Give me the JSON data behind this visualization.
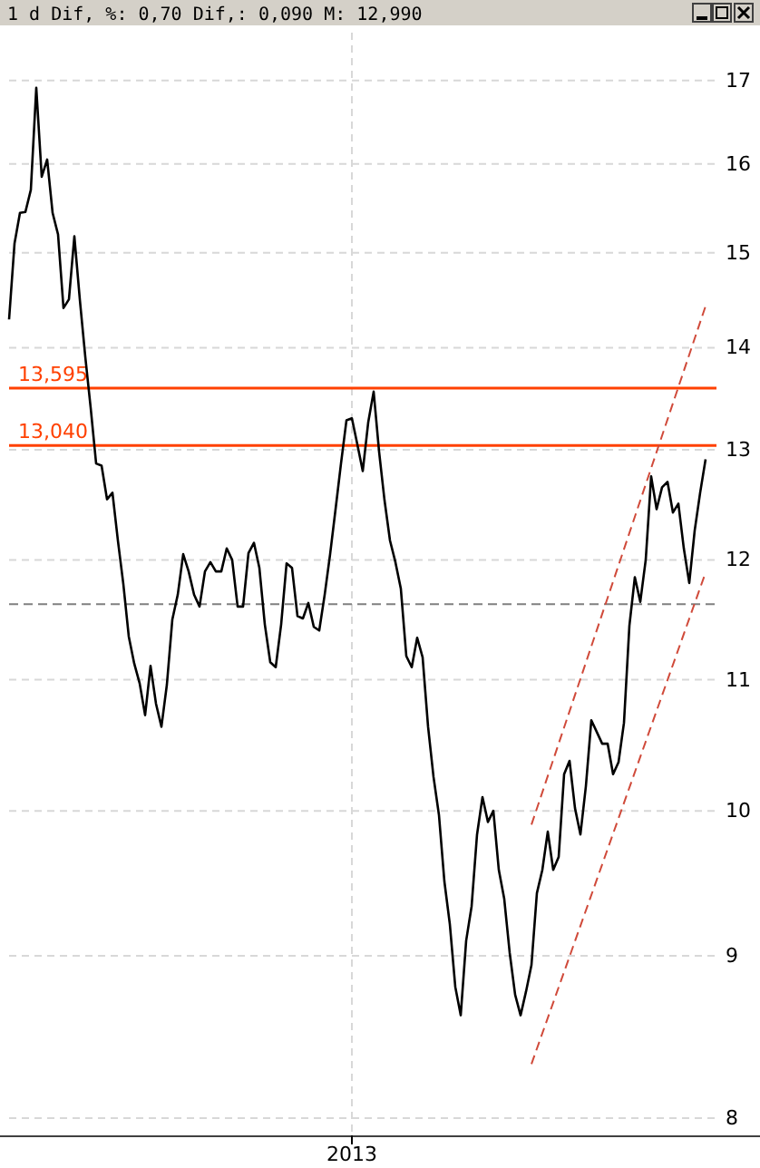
{
  "chart_data": {
    "type": "line",
    "title": "1 d Dif, %: 0,70 Dif,: 0,090 M: 12,990",
    "log": true,
    "grid": true,
    "categories": [
      null,
      null,
      null,
      null,
      null,
      null,
      null,
      null,
      null,
      null,
      null,
      null,
      null,
      null,
      null,
      null,
      null,
      null,
      null,
      null,
      null,
      null,
      null,
      null,
      null,
      null,
      null,
      null,
      null,
      null,
      null,
      null,
      null,
      null,
      null,
      null,
      null,
      null,
      null,
      null,
      null,
      null,
      null,
      null,
      null,
      null,
      null,
      null,
      null,
      null,
      null,
      null,
      null,
      null,
      null,
      null,
      null,
      null,
      null,
      null,
      null,
      null,
      null,
      "2013",
      null,
      null,
      null,
      null,
      null,
      null,
      null,
      null,
      null,
      null,
      null,
      null,
      null,
      null,
      null,
      null,
      null,
      null,
      null,
      null,
      null,
      null,
      null,
      null,
      null,
      null,
      null,
      null,
      null,
      null,
      null,
      null,
      null,
      null,
      null,
      null,
      null,
      null,
      null,
      null,
      null,
      null,
      null,
      null,
      null,
      null,
      null,
      null,
      null,
      null,
      null,
      null,
      null,
      null,
      null,
      null,
      null,
      null,
      null,
      null,
      null,
      null,
      null,
      null,
      null
    ],
    "ylim": [
      7.9,
      17.6
    ],
    "yticks": [
      8,
      9,
      10,
      11,
      12,
      13,
      14,
      15,
      16,
      17
    ],
    "ref_lines": [
      {
        "axis": "y",
        "value": 13.595,
        "label": "13,595",
        "color": "#ff4000"
      },
      {
        "axis": "y",
        "value": 13.04,
        "label": "13,040",
        "color": "#ff4000"
      },
      {
        "axis": "y",
        "value": 11.62,
        "color": "#808080",
        "line_style": "dashed"
      }
    ],
    "series": [
      {
        "color": "#000000",
        "values": [
          14.29,
          15.1,
          15.44,
          15.45,
          15.7,
          16.91,
          15.85,
          16.05,
          15.44,
          15.2,
          14.41,
          14.5,
          15.18,
          14.5,
          13.91,
          13.4,
          12.87,
          12.85,
          12.54,
          12.6,
          12.17,
          11.79,
          11.35,
          11.13,
          10.97,
          10.72,
          11.11,
          10.81,
          10.63,
          10.96,
          11.49,
          11.7,
          12.05,
          11.9,
          11.7,
          11.6,
          11.9,
          11.98,
          11.9,
          11.9,
          12.1,
          12.0,
          11.6,
          11.6,
          12.06,
          12.15,
          11.93,
          11.45,
          11.14,
          11.1,
          11.45,
          11.97,
          11.93,
          11.52,
          11.5,
          11.63,
          11.43,
          11.4,
          11.7,
          12.05,
          12.45,
          12.87,
          13.28,
          13.3,
          13.05,
          12.8,
          13.26,
          13.56,
          12.98,
          12.53,
          12.17,
          11.98,
          11.75,
          11.19,
          11.1,
          11.34,
          11.18,
          10.63,
          10.25,
          9.97,
          9.5,
          9.21,
          8.8,
          8.62,
          9.1,
          9.33,
          9.83,
          10.1,
          9.92,
          10.0,
          9.58,
          9.38,
          9.02,
          8.75,
          8.62,
          8.77,
          8.94,
          9.42,
          9.58,
          9.85,
          9.58,
          9.67,
          10.27,
          10.37,
          10.02,
          9.83,
          10.18,
          10.68,
          10.59,
          10.5,
          10.5,
          10.27,
          10.36,
          10.66,
          11.44,
          11.85,
          11.64,
          12.0,
          12.75,
          12.45,
          12.65,
          12.7,
          12.42,
          12.5,
          12.1,
          11.8,
          12.26,
          12.6,
          12.91
        ]
      },
      {
        "color": "#d04a3a",
        "line_style": "dashed",
        "values": [
          null,
          null,
          null,
          null,
          null,
          null,
          null,
          null,
          null,
          null,
          null,
          null,
          null,
          null,
          null,
          null,
          null,
          null,
          null,
          null,
          null,
          null,
          null,
          null,
          null,
          null,
          null,
          null,
          null,
          null,
          null,
          null,
          null,
          null,
          null,
          null,
          null,
          null,
          null,
          null,
          null,
          null,
          null,
          null,
          null,
          null,
          null,
          null,
          null,
          null,
          null,
          null,
          null,
          null,
          null,
          null,
          null,
          null,
          null,
          null,
          null,
          null,
          null,
          null,
          null,
          null,
          null,
          null,
          null,
          null,
          null,
          null,
          null,
          null,
          null,
          null,
          null,
          null,
          null,
          null,
          null,
          null,
          null,
          null,
          null,
          null,
          null,
          null,
          null,
          null,
          null,
          null,
          null,
          null,
          null,
          null,
          9.9,
          null,
          null,
          null,
          null,
          null,
          null,
          null,
          null,
          null,
          null,
          null,
          null,
          null,
          null,
          null,
          null,
          null,
          null,
          null,
          null,
          null,
          null,
          null,
          null,
          null,
          null,
          null,
          null,
          null,
          null,
          null,
          14.43
        ]
      },
      {
        "color": "#d04a3a",
        "line_style": "dashed",
        "values": [
          null,
          null,
          null,
          null,
          null,
          null,
          null,
          null,
          null,
          null,
          null,
          null,
          null,
          null,
          null,
          null,
          null,
          null,
          null,
          null,
          null,
          null,
          null,
          null,
          null,
          null,
          null,
          null,
          null,
          null,
          null,
          null,
          null,
          null,
          null,
          null,
          null,
          null,
          null,
          null,
          null,
          null,
          null,
          null,
          null,
          null,
          null,
          null,
          null,
          null,
          null,
          null,
          null,
          null,
          null,
          null,
          null,
          null,
          null,
          null,
          null,
          null,
          null,
          null,
          null,
          null,
          null,
          null,
          null,
          null,
          null,
          null,
          null,
          null,
          null,
          null,
          null,
          null,
          null,
          null,
          null,
          null,
          null,
          null,
          null,
          null,
          null,
          null,
          null,
          null,
          null,
          null,
          null,
          null,
          null,
          null,
          8.32,
          null,
          null,
          null,
          null,
          null,
          null,
          null,
          null,
          null,
          null,
          null,
          null,
          null,
          null,
          null,
          null,
          null,
          null,
          null,
          null,
          null,
          null,
          null,
          null,
          null,
          null,
          null,
          null,
          null,
          null,
          null,
          11.89
        ]
      }
    ]
  }
}
